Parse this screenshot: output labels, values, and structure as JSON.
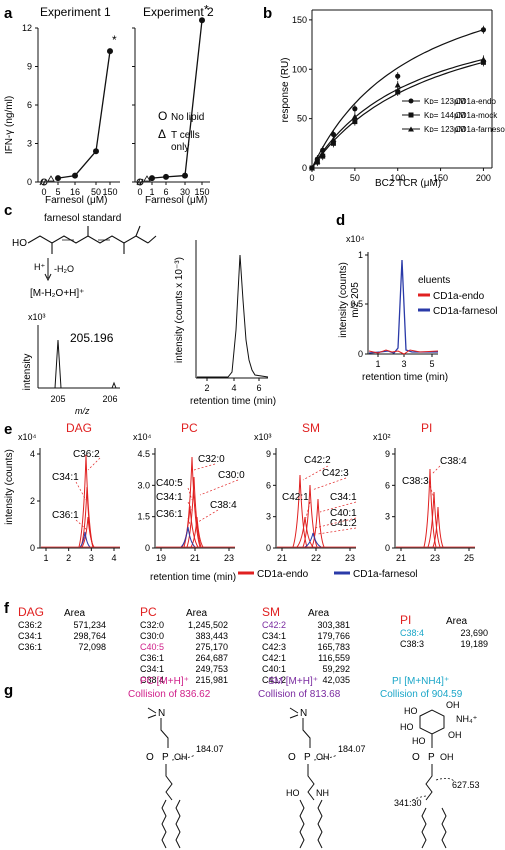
{
  "panels": {
    "a": {
      "label": "a",
      "exp1_title": "Experiment 1",
      "exp2_title": "Experiment 2",
      "ylabel": "IFN-γ (ng/ml)",
      "xlabel": "Farnesol (μM)",
      "yticks": [
        "0",
        "3",
        "6",
        "9",
        "12"
      ],
      "exp1_xticks": [
        "0",
        "5",
        "16",
        "50",
        "150"
      ],
      "exp2_xticks": [
        "0",
        "1",
        "6",
        "30",
        "150"
      ],
      "star": "*",
      "legend_nolipid": "No lipid",
      "legend_tcells_1": "T cells",
      "legend_tcells_2": "only",
      "legend_circle": "O",
      "legend_triangle": "Δ"
    },
    "b": {
      "label": "b",
      "ylabel": "response (RU)",
      "xlabel": "BC2 TCR  (μM)",
      "yticks": [
        "0",
        "50",
        "100",
        "150"
      ],
      "xticks": [
        "0",
        "50",
        "100",
        "150",
        "200"
      ],
      "legend": [
        {
          "kd": "Kᴅ= 123μM",
          "name": "CD1a-endo"
        },
        {
          "kd": "Kᴅ= 144μM",
          "name": "CD1a-mock"
        },
        {
          "kd": "Kᴅ= 123μM",
          "name": "CD1a-farnesol"
        }
      ]
    },
    "c": {
      "label": "c",
      "title": "farnesol standard",
      "ho": "HO",
      "hplus": "H⁺",
      "water": "-H₂O",
      "ion": "[M-H₂O+H]⁺",
      "x103": "x10³",
      "peak": "205.196",
      "ylabel_ms": "intensity",
      "xlabel_ms": "m/z",
      "ms_xticks": [
        "205",
        "206"
      ],
      "ylabel_chrom": "intensity (counts x 10⁻³)",
      "xlabel_chrom": "retention time (min)",
      "chrom_xticks": [
        "2",
        "4",
        "6"
      ]
    },
    "d": {
      "label": "d",
      "x104": "x10⁴",
      "ylabel": "intensity (counts)",
      "ylabel2": "m/z 205",
      "xlabel": "retention time (min)",
      "yticks": [
        "0",
        "0.5",
        "1"
      ],
      "xticks": [
        "1",
        "3",
        "5"
      ],
      "legend_title": "eluents",
      "legend": [
        "CD1a-endo",
        "CD1a-farnesol"
      ]
    },
    "e": {
      "label": "e",
      "ylabel": "intensity (counts)",
      "xlabel": "retention time (min)",
      "legend": [
        "CD1a-endo",
        "CD1a-farnesol"
      ],
      "subplots": [
        {
          "name": "DAG",
          "mult": "x10⁴",
          "yticks": [
            "0",
            "2",
            "4"
          ],
          "xticks": [
            "1",
            "2",
            "3",
            "4"
          ],
          "labels": [
            "C36:2",
            "C34:1",
            "C36:1"
          ]
        },
        {
          "name": "PC",
          "mult": "x10⁴",
          "yticks": [
            "0",
            "1.5",
            "3.0",
            "4.5"
          ],
          "xticks": [
            "19",
            "21",
            "23"
          ],
          "labels": [
            "C32:0",
            "C30:0",
            "C40:5",
            "C34:1",
            "C36:1",
            "C38:4"
          ]
        },
        {
          "name": "SM",
          "mult": "x10³",
          "yticks": [
            "0",
            "3",
            "6",
            "9"
          ],
          "xticks": [
            "21",
            "22",
            "23"
          ],
          "labels": [
            "C42:2",
            "C42:3",
            "C34:1",
            "C42:1",
            "C40:1",
            "C41:2"
          ]
        },
        {
          "name": "PI",
          "mult": "x10²",
          "yticks": [
            "0",
            "3",
            "6",
            "9"
          ],
          "xticks": [
            "21",
            "23",
            "25"
          ],
          "labels": [
            "C38:4",
            "C38:3"
          ]
        }
      ]
    },
    "f": {
      "label": "f",
      "area_header": "Area",
      "tables": [
        {
          "name": "DAG",
          "rows": [
            [
              "C36:2",
              "571,234"
            ],
            [
              "C34:1",
              "298,764"
            ],
            [
              "C36:1",
              "72,098"
            ]
          ]
        },
        {
          "name": "PC",
          "rows": [
            [
              "C32:0",
              "1,245,502"
            ],
            [
              "C30:0",
              "383,443"
            ],
            [
              "C40:5",
              "275,170"
            ],
            [
              "C36:1",
              "264,687"
            ],
            [
              "C34:1",
              "249,753"
            ],
            [
              "C38:4",
              "215,981"
            ]
          ]
        },
        {
          "name": "SM",
          "rows": [
            [
              "C42:2",
              "303,381"
            ],
            [
              "C34:1",
              "179,766"
            ],
            [
              "C42:3",
              "165,783"
            ],
            [
              "C42:1",
              "116,559"
            ],
            [
              "C40:1",
              "59,292"
            ],
            [
              "C41:2",
              "42,035"
            ]
          ]
        },
        {
          "name": "PI",
          "rows": [
            [
              "C38:4",
              "23,690"
            ],
            [
              "C38:3",
              "19,189"
            ]
          ]
        }
      ]
    },
    "g": {
      "label": "g",
      "pc_title": "PC   [M+H]⁺",
      "pc_sub": "Collision of 836.62",
      "sm_title": "SM   [M+H]⁺",
      "sm_sub": "Collision of 813.68",
      "pi_title": "PI   [M+NH4]⁺",
      "pi_sub": "Collision of 904.59",
      "frag_pc": "184.07",
      "frag_sm": "184.07",
      "frag_pi1": "627.53",
      "frag_pi2": "341.30",
      "nh4": "NH₄⁺",
      "ho": "HO",
      "nh": "NH",
      "oh": "OH",
      "o": "O",
      "p": "P",
      "n": "N"
    }
  },
  "chart_data": [
    {
      "type": "line",
      "title": "Experiment 1",
      "xlabel": "Farnesol (μM)",
      "ylabel": "IFN-γ (ng/ml)",
      "x": [
        0,
        5,
        16,
        50,
        150
      ],
      "ylim": [
        0,
        12
      ],
      "series": [
        {
          "values": [
            0,
            0.3,
            0.5,
            2.4,
            10.2
          ]
        }
      ]
    },
    {
      "type": "line",
      "title": "Experiment 2",
      "xlabel": "Farnesol (μM)",
      "x": [
        0,
        1,
        6,
        30,
        150
      ],
      "ylim": [
        0,
        12
      ],
      "series": [
        {
          "values": [
            0,
            0.3,
            0.4,
            0.5,
            12.6
          ]
        }
      ]
    },
    {
      "type": "scatter",
      "xlabel": "BC2 TCR  (μM)",
      "ylabel": "response (RU)",
      "ylim": [
        0,
        160
      ],
      "xlim": [
        0,
        200
      ],
      "x": [
        0,
        6.25,
        12.5,
        25,
        50,
        100,
        200
      ],
      "series": [
        {
          "name": "CD1a-endo",
          "values": [
            0,
            9,
            18,
            34,
            60,
            93,
            140
          ]
        },
        {
          "name": "CD1a-mock",
          "values": [
            0,
            6,
            12,
            25,
            47,
            77,
            107
          ]
        },
        {
          "name": "CD1a-farnesol",
          "values": [
            0,
            7,
            14,
            29,
            52,
            84,
            110
          ]
        }
      ]
    }
  ]
}
